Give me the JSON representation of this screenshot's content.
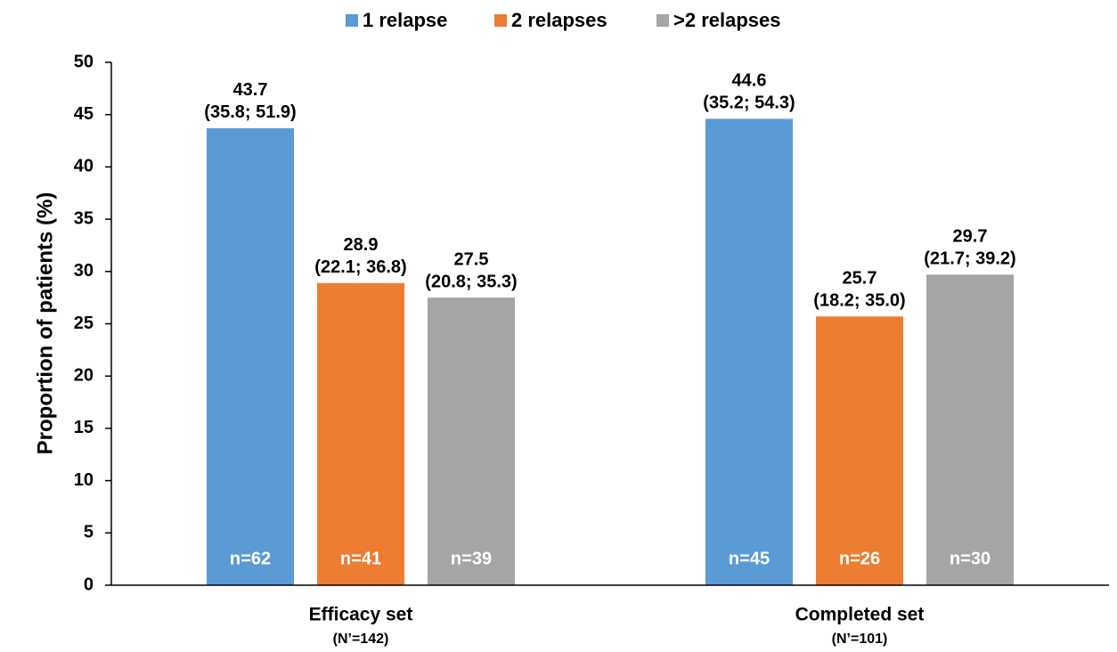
{
  "chart_data": {
    "type": "bar",
    "y_label": "Proportion of patients (%)",
    "categories": [
      "Efficacy set",
      "Completed set"
    ],
    "category_sublabels": [
      "(N’=142)",
      "(N’=101)"
    ],
    "series": [
      {
        "name": "1 relapse",
        "color": "#5b9bd5",
        "values": [
          43.7,
          44.6
        ],
        "ci_labels": [
          "(35.8; 51.9)",
          "(35.2; 54.3)"
        ],
        "n_labels": [
          "n=62",
          "n=45"
        ]
      },
      {
        "name": "2 relapses",
        "color": "#ed7d31",
        "values": [
          28.9,
          25.7
        ],
        "ci_labels": [
          "(22.1; 36.8)",
          "(18.2; 35.0)"
        ],
        "n_labels": [
          "n=41",
          "n=26"
        ]
      },
      {
        "name": ">2 relapses",
        "color": "#a5a5a5",
        "values": [
          27.5,
          29.7
        ],
        "ci_labels": [
          "(20.8; 35.3)",
          "(21.7; 39.2)"
        ],
        "n_labels": [
          "n=39",
          "n=30"
        ]
      }
    ],
    "ylim": [
      0,
      50
    ],
    "yticks": [
      0,
      5,
      10,
      15,
      20,
      25,
      30,
      35,
      40,
      45,
      50
    ],
    "grid": false,
    "legend": "top"
  }
}
